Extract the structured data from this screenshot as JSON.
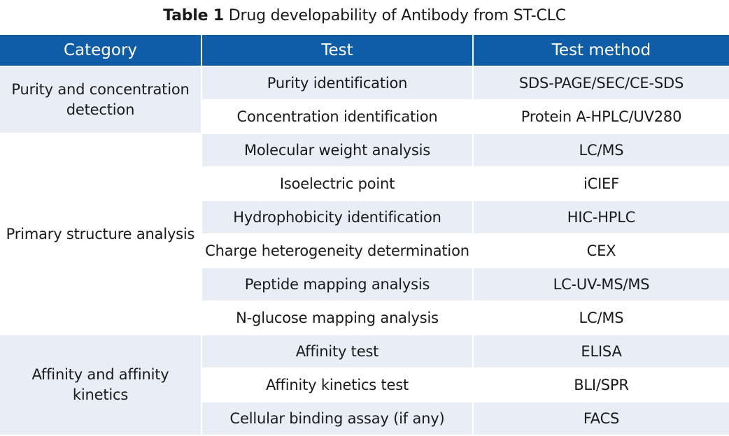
{
  "caption": {
    "label": "Table 1",
    "text": "Drug developability of Antibody from ST-CLC"
  },
  "columns": [
    "Category",
    "Test",
    "Test method"
  ],
  "groups": [
    {
      "category": "Purity and concentration detection",
      "rows": [
        {
          "test": "Purity identification",
          "method": "SDS-PAGE/SEC/CE-SDS"
        },
        {
          "test": "Concentration identification",
          "method": "Protein A-HPLC/UV280"
        }
      ]
    },
    {
      "category": "Primary structure analysis",
      "rows": [
        {
          "test": "Molecular weight analysis",
          "method": "LC/MS"
        },
        {
          "test": "Isoelectric point",
          "method": "iCIEF"
        },
        {
          "test": "Hydrophobicity identification",
          "method": "HIC-HPLC"
        },
        {
          "test": "Charge heterogeneity determination",
          "method": "CEX"
        },
        {
          "test": "Peptide mapping analysis",
          "method": "LC-UV-MS/MS"
        },
        {
          "test": "N-glucose mapping analysis",
          "method": "LC/MS"
        }
      ]
    },
    {
      "category": "Affinity and  affinity kinetics",
      "rows": [
        {
          "test": "Affinity test",
          "method": "ELISA"
        },
        {
          "test": "Affinity kinetics test",
          "method": "BLI/SPR"
        },
        {
          "test": "Cellular binding assay  (if any)",
          "method": "FACS"
        }
      ]
    }
  ],
  "colors": {
    "header_bg": "#0e5da6",
    "header_text": "#ffffff",
    "row_shade": "#e9eef6",
    "row_plain": "#ffffff"
  }
}
